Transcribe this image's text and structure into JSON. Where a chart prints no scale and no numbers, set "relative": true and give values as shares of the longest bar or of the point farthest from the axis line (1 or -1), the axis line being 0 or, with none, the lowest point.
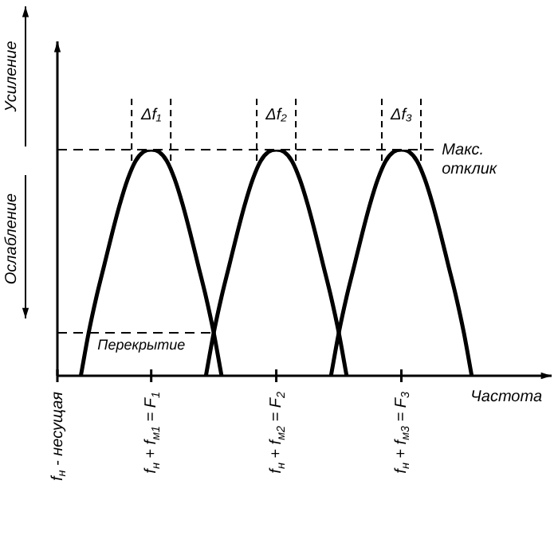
{
  "chart_data": {
    "type": "line",
    "relative": true,
    "legend": false,
    "ylabel": "Усиление",
    "xlabel": "Частота",
    "annotations": [
      "Ослабление",
      "Δf₁",
      "Δf₂",
      "Δf₃"
    ],
    "categories": [
      "f$_{н}$ - несущая",
      null,
      null,
      null,
      null,
      null,
      null,
      null,
      null,
      null,
      null,
      null,
      "f$_{н}$ + f$_{м1}$ = F$_{1}$",
      null,
      null,
      null,
      null,
      null,
      null,
      null,
      null,
      null,
      null,
      null,
      null,
      null,
      null,
      null,
      "f$_{н}$ + f$_{м2}$ = F$_{2}$",
      null,
      null,
      null,
      null,
      null,
      null,
      null,
      null,
      null,
      null,
      null,
      null,
      null,
      null,
      null,
      "f$_{н}$ + f$_{м3}$ = F$_{3}$",
      null,
      null,
      null,
      null,
      null,
      null,
      null,
      null,
      null,
      null,
      null,
      null,
      null,
      null,
      null,
      null,
      null,
      null
    ],
    "series": [
      {
        "color": "#000000",
        "values": [
          null,
          null,
          null,
          0,
          0.19,
          0.35,
          0.49,
          0.63,
          0.76,
          0.87,
          0.95,
          0.99,
          1,
          0.99,
          0.95,
          0.87,
          0.76,
          0.63,
          0.49,
          0.35,
          0.19,
          0,
          null,
          null,
          null,
          null,
          null,
          null,
          null,
          null,
          null,
          null,
          null,
          null,
          null,
          null,
          null,
          null,
          null,
          null,
          null,
          null,
          null,
          null,
          null,
          null,
          null,
          null,
          null,
          null,
          null,
          null,
          null,
          null,
          null,
          null,
          null,
          null,
          null,
          null,
          null,
          null,
          null
        ]
      },
      {
        "color": "#000000",
        "values": [
          null,
          null,
          null,
          null,
          null,
          null,
          null,
          null,
          null,
          null,
          null,
          null,
          null,
          null,
          null,
          null,
          null,
          null,
          null,
          0,
          0.19,
          0.35,
          0.49,
          0.63,
          0.76,
          0.87,
          0.95,
          0.99,
          1,
          0.99,
          0.95,
          0.87,
          0.76,
          0.63,
          0.49,
          0.35,
          0.19,
          0,
          null,
          null,
          null,
          null,
          null,
          null,
          null,
          null,
          null,
          null,
          null,
          null,
          null,
          null,
          null,
          null,
          null,
          null,
          null,
          null,
          null,
          null,
          null,
          null,
          null
        ]
      },
      {
        "color": "#000000",
        "values": [
          null,
          null,
          null,
          null,
          null,
          null,
          null,
          null,
          null,
          null,
          null,
          null,
          null,
          null,
          null,
          null,
          null,
          null,
          null,
          null,
          null,
          null,
          null,
          null,
          null,
          null,
          null,
          null,
          null,
          null,
          null,
          null,
          null,
          null,
          null,
          0,
          0.19,
          0.35,
          0.49,
          0.63,
          0.76,
          0.87,
          0.95,
          0.99,
          1,
          0.99,
          0.95,
          0.87,
          0.76,
          0.63,
          0.49,
          0.35,
          0.19,
          0,
          null,
          null,
          null,
          null,
          null,
          null,
          null,
          null,
          null
        ]
      }
    ],
    "ref_lines": [
      {
        "axis": "y",
        "value": 1,
        "label": "Макс. отклик",
        "line_style": "dashed"
      },
      {
        "axis": "y",
        "value": 0.19,
        "label": "Перекрытие",
        "line_style": "dashed"
      }
    ]
  }
}
